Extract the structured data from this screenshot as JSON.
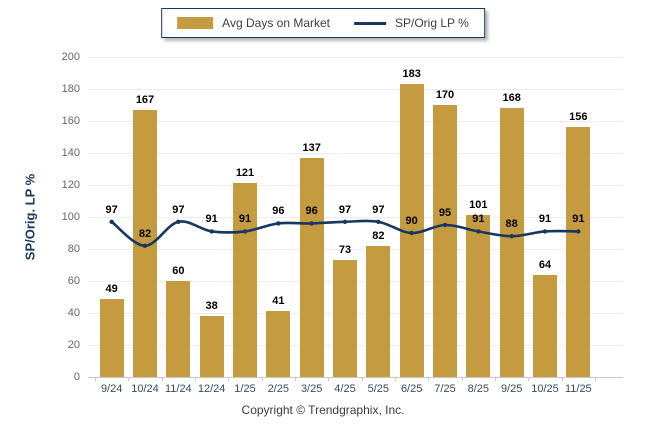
{
  "legend": {
    "bar_label": "Avg Days on Market",
    "line_label": "SP/Orig LP %"
  },
  "footer": {
    "copyright": "Copyright © Trendgraphix, Inc."
  },
  "colors": {
    "bar": "#C59B3F",
    "line": "#17375E",
    "grid": "#ECECEC",
    "axis": "#C9C9C9",
    "label_text": "#000000",
    "y_tick_text": "#666666",
    "x_tick_text": "#3D4A5C",
    "axis_title_text": "#17375E",
    "legend_text": "#404040",
    "legend_border": "#17375E"
  },
  "chart_data": {
    "type": "combo-bar-line",
    "categories": [
      "9/24",
      "10/24",
      "11/24",
      "12/24",
      "1/25",
      "2/25",
      "3/25",
      "4/25",
      "5/25",
      "6/25",
      "7/25",
      "8/25",
      "9/25",
      "10/25",
      "11/25"
    ],
    "series": [
      {
        "name": "Avg Days on Market",
        "type": "bar",
        "values": [
          49,
          167,
          60,
          38,
          121,
          41,
          137,
          73,
          82,
          183,
          170,
          101,
          168,
          64,
          156
        ]
      },
      {
        "name": "SP/Orig LP %",
        "type": "line",
        "values": [
          97,
          82,
          97,
          91,
          91,
          96,
          96,
          97,
          97,
          90,
          95,
          91,
          88,
          91,
          91
        ]
      }
    ],
    "title": "",
    "xlabel": "",
    "ylabel": "SP/Orig. LP %",
    "ylim": [
      0,
      200
    ],
    "ytick_step": 20,
    "grid": true,
    "legend_position": "top-center",
    "data_labels": true
  }
}
